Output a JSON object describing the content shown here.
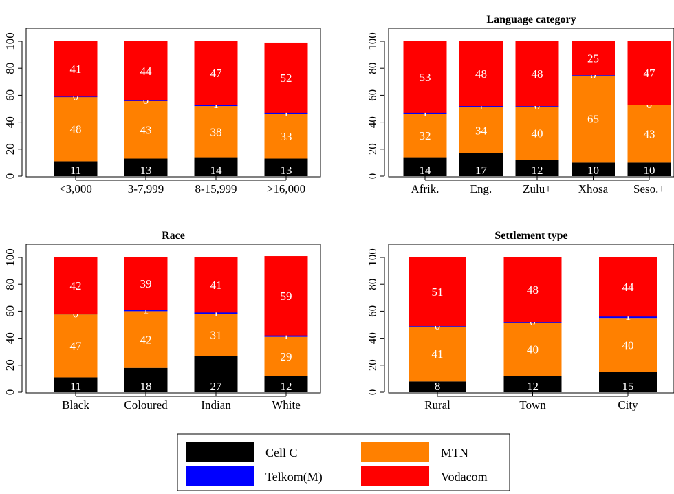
{
  "colors": {
    "Cell C": "#000000",
    "Telkom(M)": "#0000ff",
    "MTN": "#ff8000",
    "Vodacom": "#ff0000"
  },
  "legend": {
    "items": [
      "Cell C",
      "MTN",
      "Telkom(M)",
      "Vodacom"
    ]
  },
  "chart_data": [
    {
      "type": "bar",
      "stacked": true,
      "title": "",
      "xlabel": "",
      "ylabel": "",
      "ylim": [
        0,
        100
      ],
      "yticks": [
        0,
        20,
        40,
        60,
        80,
        100
      ],
      "categories": [
        "<3,000",
        "3-7,999",
        "8-15,999",
        ">16,000"
      ],
      "series": [
        {
          "name": "Cell C",
          "values": [
            11,
            13,
            14,
            13
          ]
        },
        {
          "name": "MTN",
          "values": [
            48,
            43,
            38,
            33
          ]
        },
        {
          "name": "Telkom(M)",
          "values": [
            0,
            0,
            1,
            1
          ]
        },
        {
          "name": "Vodacom",
          "values": [
            41,
            44,
            47,
            52
          ]
        }
      ]
    },
    {
      "type": "bar",
      "stacked": true,
      "title": "Language category",
      "xlabel": "",
      "ylabel": "",
      "ylim": [
        0,
        100
      ],
      "yticks": [
        0,
        20,
        40,
        60,
        80,
        100
      ],
      "categories": [
        "Afrik.",
        "Eng.",
        "Zulu+",
        "Xhosa",
        "Seso.+"
      ],
      "series": [
        {
          "name": "Cell C",
          "values": [
            14,
            17,
            12,
            10,
            10
          ]
        },
        {
          "name": "MTN",
          "values": [
            32,
            34,
            40,
            65,
            43
          ]
        },
        {
          "name": "Telkom(M)",
          "values": [
            1,
            1,
            0,
            0,
            0
          ]
        },
        {
          "name": "Vodacom",
          "values": [
            53,
            48,
            48,
            25,
            47
          ]
        }
      ]
    },
    {
      "type": "bar",
      "stacked": true,
      "title": "Race",
      "xlabel": "",
      "ylabel": "",
      "ylim": [
        0,
        100
      ],
      "yticks": [
        0,
        20,
        40,
        60,
        80,
        100
      ],
      "categories": [
        "Black",
        "Coloured",
        "Indian",
        "White"
      ],
      "series": [
        {
          "name": "Cell C",
          "values": [
            11,
            18,
            27,
            12
          ]
        },
        {
          "name": "MTN",
          "values": [
            47,
            42,
            31,
            29
          ]
        },
        {
          "name": "Telkom(M)",
          "values": [
            0,
            1,
            1,
            1
          ]
        },
        {
          "name": "Vodacom",
          "values": [
            42,
            39,
            41,
            59
          ]
        }
      ]
    },
    {
      "type": "bar",
      "stacked": true,
      "title": "Settlement type",
      "xlabel": "",
      "ylabel": "",
      "ylim": [
        0,
        100
      ],
      "yticks": [
        0,
        20,
        40,
        60,
        80,
        100
      ],
      "categories": [
        "Rural",
        "Town",
        "City"
      ],
      "series": [
        {
          "name": "Cell C",
          "values": [
            8,
            12,
            15
          ]
        },
        {
          "name": "MTN",
          "values": [
            41,
            40,
            40
          ]
        },
        {
          "name": "Telkom(M)",
          "values": [
            0,
            0,
            1
          ]
        },
        {
          "name": "Vodacom",
          "values": [
            51,
            48,
            44
          ]
        }
      ]
    }
  ]
}
